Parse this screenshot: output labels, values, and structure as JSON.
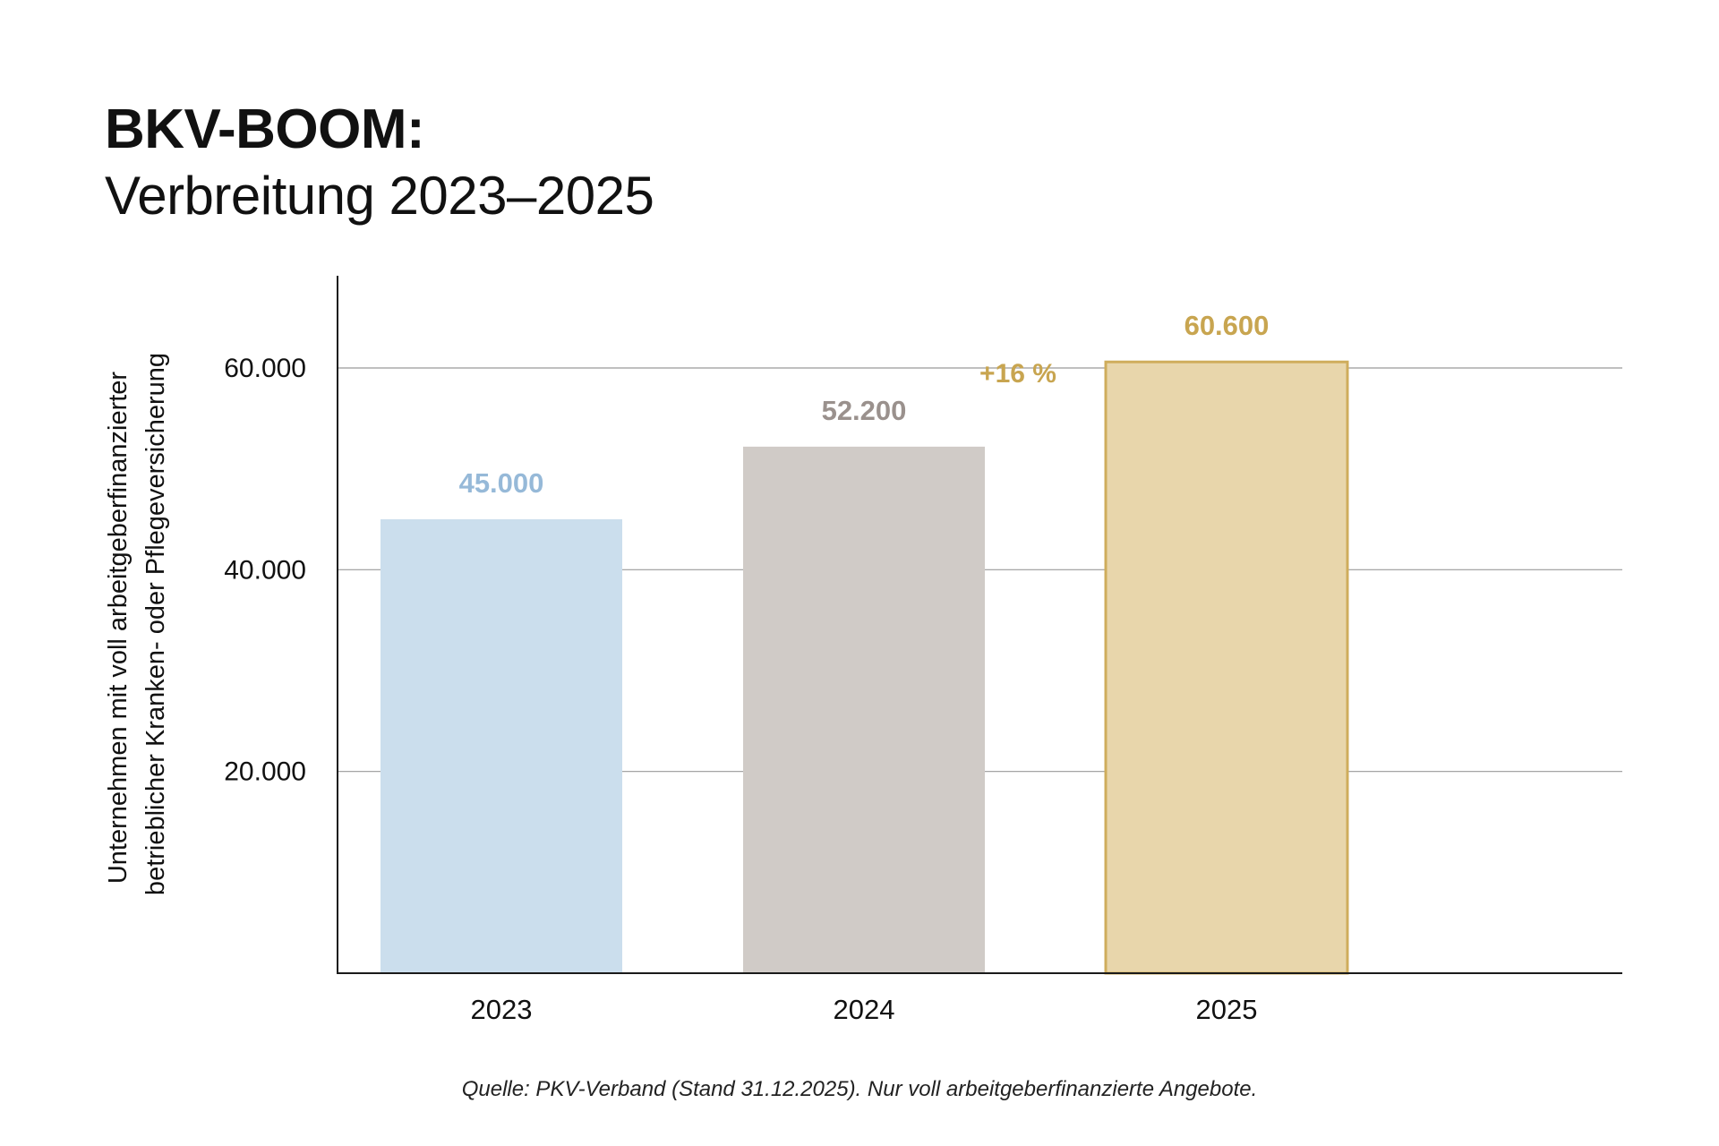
{
  "title": "BKV-BOOM:",
  "subtitle": "Verbreitung 2023–2025",
  "source": "Quelle: PKV-Verband (Stand 31.12.2025). Nur voll arbeitgeberfinanzierte Angebote.",
  "chart_data": {
    "type": "bar",
    "categories": [
      "2023",
      "2024",
      "2025"
    ],
    "values": [
      45000,
      52200,
      60600
    ],
    "data_labels": [
      "45.000",
      "52.200",
      "60.600"
    ],
    "ylabel_lines": [
      "Unternehmen mit voll arbeitgeberfinanzierter",
      "betrieblicher Kranken- oder Pflegeversicherung"
    ],
    "yticks": [
      {
        "value": 20000,
        "label": "20.000"
      },
      {
        "value": 40000,
        "label": "40.000"
      },
      {
        "value": 60000,
        "label": "60.000"
      }
    ],
    "ylim": [
      0,
      69000
    ],
    "grid": true,
    "annotation": {
      "text": "+16 %",
      "color": "#c8a550"
    },
    "colors": {
      "fills": [
        "#cbdeed",
        "#d0cbc7",
        "#e8d6ab"
      ],
      "labels": [
        "#96b9d8",
        "#9a918d",
        "#c8a550"
      ],
      "stroke_2025": "#cfad5c",
      "axis": "#1a1a1a",
      "grid": "#9a9a9a"
    }
  }
}
